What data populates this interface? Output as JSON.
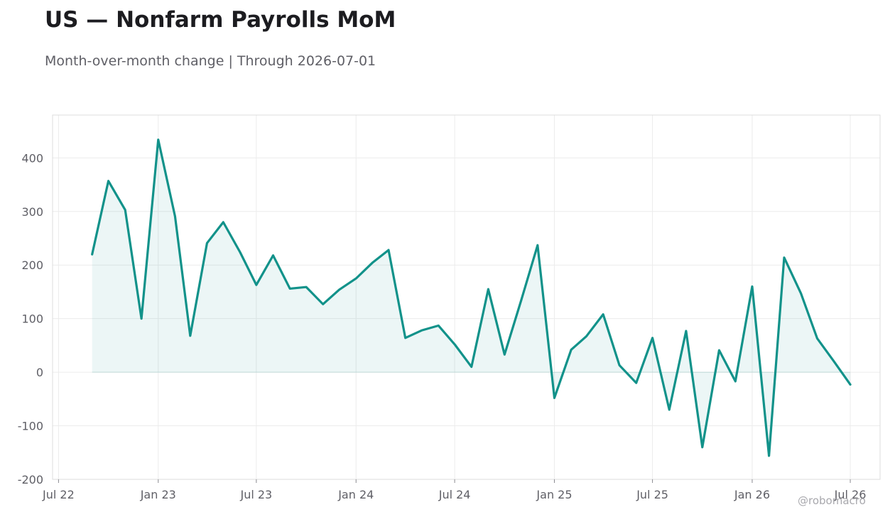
{
  "header": {
    "title": "US — Nonfarm Payrolls MoM",
    "subtitle": "Month-over-month change | Through 2026-07-01"
  },
  "watermark": "@robomacro",
  "colors": {
    "line": "#12928a",
    "fill": "#12928a",
    "grid": "#ececec",
    "frame": "#dcdcdc",
    "text": "#5f5f66"
  },
  "chart_data": {
    "type": "area",
    "title": "US — Nonfarm Payrolls MoM",
    "subtitle": "Month-over-month change | Through 2026-07-01",
    "xlabel": "",
    "ylabel": "",
    "ylim": [
      -200,
      480
    ],
    "xlim": [
      "2022-06-20",
      "2026-08-25"
    ],
    "yticks": [
      -200,
      -100,
      0,
      100,
      200,
      300,
      400
    ],
    "xticks": [
      {
        "date": "2022-07-01",
        "label": "Jul 22"
      },
      {
        "date": "2023-01-01",
        "label": "Jan 23"
      },
      {
        "date": "2023-07-01",
        "label": "Jul 23"
      },
      {
        "date": "2024-01-01",
        "label": "Jan 24"
      },
      {
        "date": "2024-07-01",
        "label": "Jul 24"
      },
      {
        "date": "2025-01-01",
        "label": "Jan 25"
      },
      {
        "date": "2025-07-01",
        "label": "Jul 25"
      },
      {
        "date": "2026-01-01",
        "label": "Jan 26"
      },
      {
        "date": "2026-07-01",
        "label": "Jul 26"
      }
    ],
    "grid": true,
    "legend": "none",
    "series": [
      {
        "x": [
          "2022-09-01",
          "2022-10-01",
          "2022-11-01",
          "2022-12-01",
          "2023-01-01",
          "2023-02-01",
          "2023-03-01",
          "2023-04-01",
          "2023-05-01",
          "2023-06-01",
          "2023-07-01",
          "2023-08-01",
          "2023-09-01",
          "2023-10-01",
          "2023-11-01",
          "2023-12-01",
          "2024-01-01",
          "2024-02-01",
          "2024-03-01",
          "2024-04-01",
          "2024-05-01",
          "2024-06-01",
          "2024-07-01",
          "2024-08-01",
          "2024-09-01",
          "2024-10-01",
          "2024-11-01",
          "2024-12-01",
          "2025-01-01",
          "2025-02-01",
          "2025-03-01",
          "2025-04-01",
          "2025-05-01",
          "2025-06-01",
          "2025-07-01",
          "2025-08-01",
          "2025-09-01",
          "2025-10-01",
          "2025-11-01",
          "2025-12-01",
          "2026-01-01",
          "2026-02-01",
          "2026-03-01",
          "2026-04-01",
          "2026-05-01",
          "2026-06-01",
          "2026-07-01"
        ],
        "values": [
          220,
          357,
          303,
          100,
          434,
          291,
          68,
          241,
          280,
          224,
          163,
          218,
          156,
          159,
          127,
          154,
          175,
          205,
          228,
          64,
          78,
          87,
          52,
          10,
          155,
          33,
          135,
          237,
          -48,
          42,
          67,
          108,
          13,
          -20,
          64,
          -70,
          77,
          -140,
          41,
          -17,
          160,
          -156,
          214,
          147,
          63,
          20,
          -23
        ]
      }
    ]
  }
}
